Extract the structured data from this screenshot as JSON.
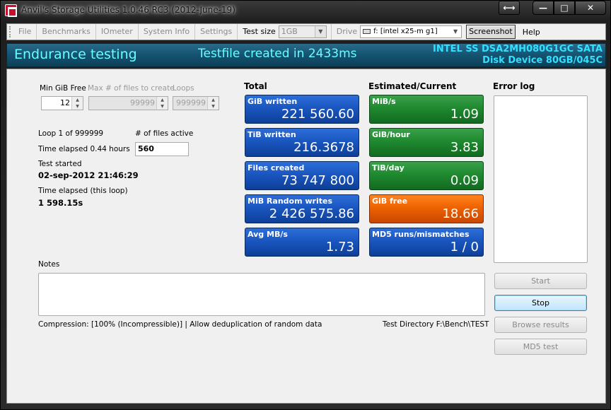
{
  "window": {
    "title": "Anvil's Storage Utilities 1.0.46 RC3 (2012-June-19)",
    "swap_glyph": "⟷",
    "min_glyph": "—",
    "max_glyph": "□",
    "close_glyph": "✕"
  },
  "menu": {
    "file": "File",
    "benchmarks": "Benchmarks",
    "iometer": "IOmeter",
    "system_info": "System Info",
    "settings": "Settings",
    "test_size_label": "Test size",
    "test_size_value": "1GB",
    "drive_label": "Drive",
    "drive_value": "f: [intel x25-m g1]",
    "screenshot": "Screenshot",
    "help": "Help"
  },
  "header": {
    "title": "Endurance testing",
    "status": "Testfile created in 2433ms",
    "drive_line1": "INTEL SS DSA2MH080G1GC SATA",
    "drive_line2": "Disk Device 80GB/045C"
  },
  "settings": {
    "min_gib_free_label": "Min GiB Free",
    "min_gib_free_value": "12",
    "max_files_label": "Max # of files to create",
    "max_files_value": "99999",
    "loops_label": "Loops",
    "loops_value": "999999"
  },
  "status": {
    "loop": "Loop 1 of 999999",
    "files_active_label": "# of files active",
    "files_active_value": "560",
    "time_elapsed": "Time elapsed 0.44 hours",
    "test_started_label": "Test started",
    "test_started_value": "02-sep-2012 21:46:29",
    "time_elapsed_loop_label": "Time elapsed (this loop)",
    "time_elapsed_loop_value": "1 598.15s"
  },
  "total": {
    "heading": "Total",
    "tiles": [
      {
        "label": "GiB written",
        "value": "221 560.60"
      },
      {
        "label": "TiB written",
        "value": "216.3678"
      },
      {
        "label": "Files created",
        "value": "73 747 800"
      },
      {
        "label": "MiB Random writes",
        "value": "2 426 575.86"
      },
      {
        "label": "Avg MB/s",
        "value": "1.73"
      }
    ]
  },
  "estimated": {
    "heading": "Estimated/Current",
    "tiles": [
      {
        "label": "MiB/s",
        "value": "1.09",
        "color": "green"
      },
      {
        "label": "GiB/hour",
        "value": "3.83",
        "color": "green"
      },
      {
        "label": "TiB/day",
        "value": "0.09",
        "color": "green"
      },
      {
        "label": "GiB free",
        "value": "18.66",
        "color": "orange"
      },
      {
        "label": "MD5 runs/mismatches",
        "value": "1 / 0",
        "color": "blue"
      }
    ]
  },
  "error_log": {
    "heading": "Error log"
  },
  "notes": {
    "label": "Notes"
  },
  "footer": {
    "compression": "Compression: [100% (Incompressible)] | Allow deduplication of random data",
    "test_directory": "Test Directory F:\\Bench\\TEST"
  },
  "buttons": {
    "start": "Start",
    "stop": "Stop",
    "browse": "Browse results",
    "md5": "MD5 test"
  },
  "colors": {
    "header_text": "#66ffff",
    "tile_blue": "#1a56c0",
    "tile_green": "#1f8a30",
    "tile_orange": "#ee6200"
  }
}
